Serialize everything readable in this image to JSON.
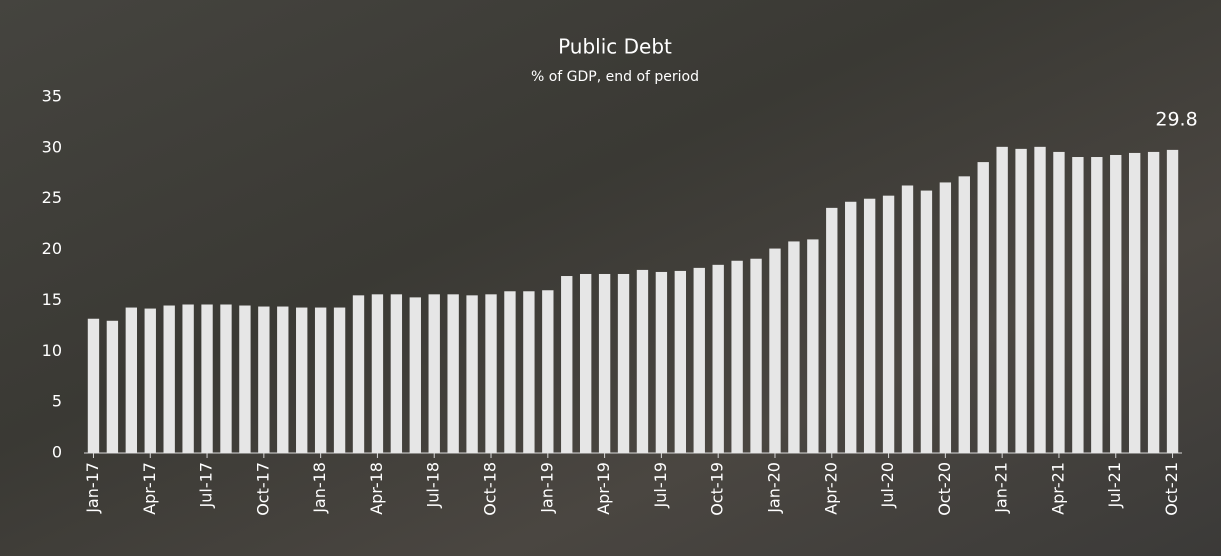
{
  "chart_data": {
    "type": "bar",
    "title": "Public Debt",
    "subtitle": "% of GDP, end of period",
    "categories": [
      "Jan-17",
      null,
      null,
      "Apr-17",
      null,
      null,
      "Jul-17",
      null,
      null,
      "Oct-17",
      null,
      null,
      "Jan-18",
      null,
      null,
      "Apr-18",
      null,
      null,
      "Jul-18",
      null,
      null,
      "Oct-18",
      null,
      null,
      "Jan-19",
      null,
      null,
      "Apr-19",
      null,
      null,
      "Jul-19",
      null,
      null,
      "Oct-19",
      null,
      null,
      "Jan-20",
      null,
      null,
      "Apr-20",
      null,
      null,
      "Jul-20",
      null,
      null,
      "Oct-20",
      null,
      null,
      "Jan-21",
      null,
      null,
      "Apr-21",
      null,
      null,
      "Jul-21",
      null,
      null,
      "Oct-21"
    ],
    "values": [
      13.2,
      13.0,
      14.3,
      14.2,
      14.5,
      14.6,
      14.6,
      14.6,
      14.5,
      14.4,
      14.4,
      14.3,
      14.3,
      14.3,
      15.5,
      15.6,
      15.6,
      15.3,
      15.6,
      15.6,
      15.5,
      15.6,
      15.9,
      15.9,
      16.0,
      17.4,
      17.6,
      17.6,
      17.6,
      18.0,
      17.8,
      17.9,
      18.2,
      18.5,
      18.9,
      19.1,
      20.1,
      20.8,
      21.0,
      24.1,
      24.7,
      25.0,
      25.3,
      26.3,
      25.8,
      26.6,
      27.2,
      28.6,
      30.1,
      29.9,
      30.1,
      29.6,
      29.1,
      29.1,
      29.3,
      29.5,
      29.6,
      29.8
    ],
    "color": "#e6e6e6",
    "ylim": [
      0,
      35
    ],
    "yticks": [
      0,
      5,
      10,
      15,
      20,
      25,
      30,
      35
    ],
    "grid": false
  }
}
